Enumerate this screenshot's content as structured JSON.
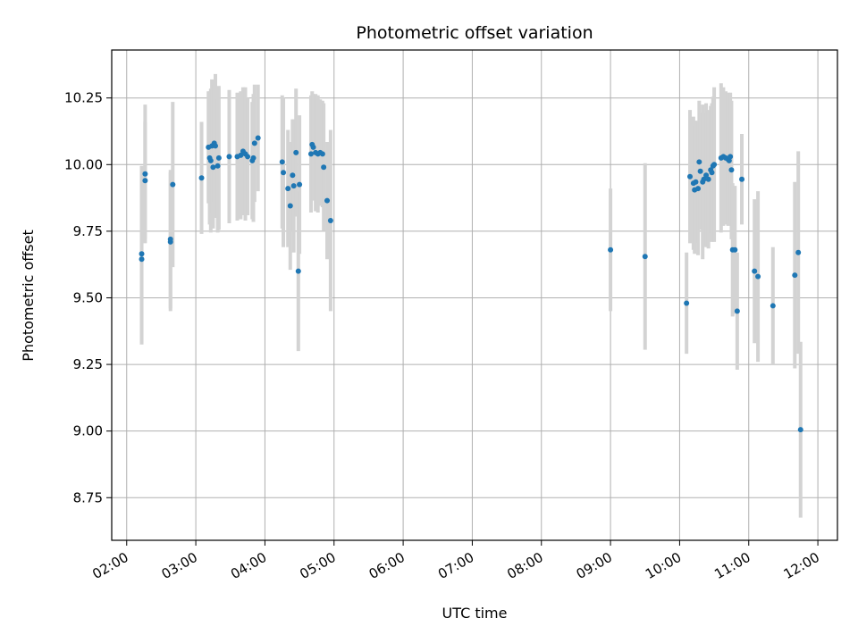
{
  "chart_data": {
    "type": "scatter",
    "title": "Photometric offset variation",
    "xlabel": "UTC time",
    "ylabel": "Photometric offset",
    "x_ticks": [
      "02:00",
      "03:00",
      "04:00",
      "05:00",
      "06:00",
      "07:00",
      "08:00",
      "09:00",
      "10:00",
      "11:00",
      "12:00"
    ],
    "y_ticks": [
      "8.75",
      "9.00",
      "9.25",
      "9.50",
      "9.75",
      "10.00",
      "10.25"
    ],
    "xlim": [
      "01:47",
      "12:17"
    ],
    "ylim": [
      8.59,
      10.43
    ],
    "grid": true,
    "colors": {
      "points": "#1f77b4",
      "error_bars": "#d3d3d3",
      "grid": "#b0b0b0"
    },
    "points": [
      {
        "t": "02:13",
        "y": 9.665,
        "err": 0.33
      },
      {
        "t": "02:13",
        "y": 9.645,
        "err": 0.32
      },
      {
        "t": "02:16",
        "y": 9.94,
        "err": 0.22
      },
      {
        "t": "02:16",
        "y": 9.965,
        "err": 0.26
      },
      {
        "t": "02:38",
        "y": 9.71,
        "err": 0.26
      },
      {
        "t": "02:38",
        "y": 9.72,
        "err": 0.26
      },
      {
        "t": "02:40",
        "y": 9.925,
        "err": 0.31
      },
      {
        "t": "03:05",
        "y": 9.95,
        "err": 0.21
      },
      {
        "t": "03:11",
        "y": 10.065,
        "err": 0.21
      },
      {
        "t": "03:12",
        "y": 10.025,
        "err": 0.25
      },
      {
        "t": "03:13",
        "y": 10.015,
        "err": 0.27
      },
      {
        "t": "03:14",
        "y": 10.07,
        "err": 0.25
      },
      {
        "t": "03:15",
        "y": 9.99,
        "err": 0.23
      },
      {
        "t": "03:16",
        "y": 10.08,
        "err": 0.22
      },
      {
        "t": "03:17",
        "y": 10.07,
        "err": 0.27
      },
      {
        "t": "03:19",
        "y": 9.995,
        "err": 0.25
      },
      {
        "t": "03:20",
        "y": 10.025,
        "err": 0.27
      },
      {
        "t": "03:29",
        "y": 10.03,
        "err": 0.25
      },
      {
        "t": "03:36",
        "y": 10.03,
        "err": 0.24
      },
      {
        "t": "03:39",
        "y": 10.035,
        "err": 0.24
      },
      {
        "t": "03:41",
        "y": 10.05,
        "err": 0.24
      },
      {
        "t": "03:43",
        "y": 10.04,
        "err": 0.25
      },
      {
        "t": "03:45",
        "y": 10.03,
        "err": 0.22
      },
      {
        "t": "03:49",
        "y": 10.015,
        "err": 0.22
      },
      {
        "t": "03:50",
        "y": 10.025,
        "err": 0.24
      },
      {
        "t": "03:51",
        "y": 10.08,
        "err": 0.22
      },
      {
        "t": "03:54",
        "y": 10.1,
        "err": 0.2
      },
      {
        "t": "04:15",
        "y": 10.01,
        "err": 0.25
      },
      {
        "t": "04:16",
        "y": 9.97,
        "err": 0.28
      },
      {
        "t": "04:20",
        "y": 9.91,
        "err": 0.22
      },
      {
        "t": "04:22",
        "y": 9.845,
        "err": 0.24
      },
      {
        "t": "04:24",
        "y": 9.96,
        "err": 0.21
      },
      {
        "t": "04:25",
        "y": 9.92,
        "err": 0.25
      },
      {
        "t": "04:27",
        "y": 10.045,
        "err": 0.24
      },
      {
        "t": "04:29",
        "y": 9.6,
        "err": 0.3
      },
      {
        "t": "04:30",
        "y": 9.925,
        "err": 0.26
      },
      {
        "t": "04:40",
        "y": 10.04,
        "err": 0.22
      },
      {
        "t": "04:41",
        "y": 10.075,
        "err": 0.2
      },
      {
        "t": "04:42",
        "y": 10.065,
        "err": 0.2
      },
      {
        "t": "04:44",
        "y": 10.045,
        "err": 0.22
      },
      {
        "t": "04:46",
        "y": 10.04,
        "err": 0.22
      },
      {
        "t": "04:48",
        "y": 10.045,
        "err": 0.2
      },
      {
        "t": "04:50",
        "y": 10.04,
        "err": 0.2
      },
      {
        "t": "04:51",
        "y": 9.99,
        "err": 0.24
      },
      {
        "t": "04:54",
        "y": 9.865,
        "err": 0.22
      },
      {
        "t": "04:57",
        "y": 9.79,
        "err": 0.34
      },
      {
        "t": "09:00",
        "y": 9.68,
        "err": 0.23
      },
      {
        "t": "09:30",
        "y": 9.655,
        "err": 0.35
      },
      {
        "t": "10:06",
        "y": 9.48,
        "err": 0.19
      },
      {
        "t": "10:09",
        "y": 9.955,
        "err": 0.25
      },
      {
        "t": "10:12",
        "y": 9.93,
        "err": 0.25
      },
      {
        "t": "10:13",
        "y": 9.905,
        "err": 0.24
      },
      {
        "t": "10:14",
        "y": 9.935,
        "err": 0.23
      },
      {
        "t": "10:16",
        "y": 9.91,
        "err": 0.25
      },
      {
        "t": "10:17",
        "y": 10.01,
        "err": 0.23
      },
      {
        "t": "10:18",
        "y": 9.975,
        "err": 0.22
      },
      {
        "t": "10:20",
        "y": 9.935,
        "err": 0.29
      },
      {
        "t": "10:21",
        "y": 9.945,
        "err": 0.25
      },
      {
        "t": "10:23",
        "y": 9.96,
        "err": 0.27
      },
      {
        "t": "10:25",
        "y": 9.945,
        "err": 0.26
      },
      {
        "t": "10:27",
        "y": 9.98,
        "err": 0.24
      },
      {
        "t": "10:28",
        "y": 9.97,
        "err": 0.26
      },
      {
        "t": "10:29",
        "y": 9.995,
        "err": 0.26
      },
      {
        "t": "10:30",
        "y": 10.0,
        "err": 0.29
      },
      {
        "t": "10:36",
        "y": 10.025,
        "err": 0.28
      },
      {
        "t": "10:38",
        "y": 10.03,
        "err": 0.26
      },
      {
        "t": "10:40",
        "y": 10.025,
        "err": 0.25
      },
      {
        "t": "10:42",
        "y": 10.02,
        "err": 0.25
      },
      {
        "t": "10:43",
        "y": 10.015,
        "err": 0.24
      },
      {
        "t": "10:44",
        "y": 10.03,
        "err": 0.24
      },
      {
        "t": "10:45",
        "y": 9.98,
        "err": 0.26
      },
      {
        "t": "10:46",
        "y": 9.68,
        "err": 0.25
      },
      {
        "t": "10:48",
        "y": 9.68,
        "err": 0.24
      },
      {
        "t": "10:50",
        "y": 9.45,
        "err": 0.22
      },
      {
        "t": "10:54",
        "y": 9.945,
        "err": 0.17
      },
      {
        "t": "11:05",
        "y": 9.6,
        "err": 0.27
      },
      {
        "t": "11:08",
        "y": 9.58,
        "err": 0.32
      },
      {
        "t": "11:21",
        "y": 9.47,
        "err": 0.22
      },
      {
        "t": "11:40",
        "y": 9.585,
        "err": 0.35
      },
      {
        "t": "11:43",
        "y": 9.67,
        "err": 0.38
      },
      {
        "t": "11:45",
        "y": 9.005,
        "err": 0.33
      }
    ]
  }
}
